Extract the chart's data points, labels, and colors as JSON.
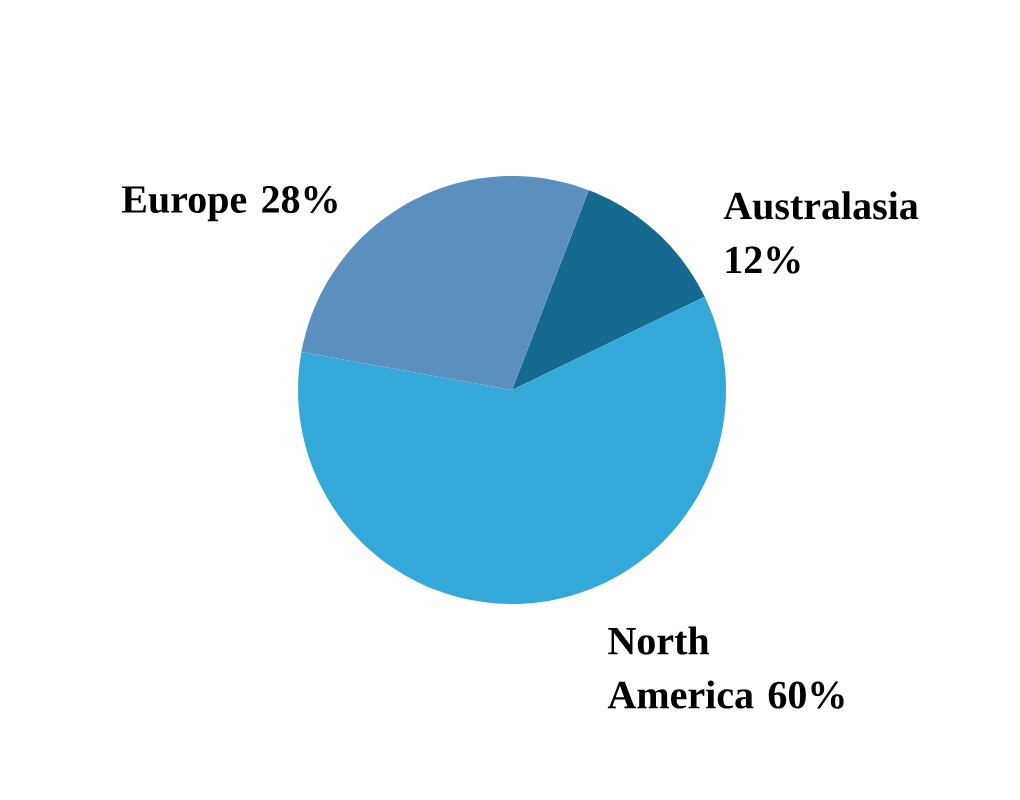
{
  "chart_data": {
    "type": "pie",
    "categories": [
      "Australasia",
      "North America",
      "Europe"
    ],
    "values": [
      12,
      60,
      28
    ],
    "value_labels": [
      "12%",
      "60%",
      "28%"
    ],
    "colors": [
      "#16698f",
      "#33a8d9",
      "#5b8fbd"
    ]
  }
}
